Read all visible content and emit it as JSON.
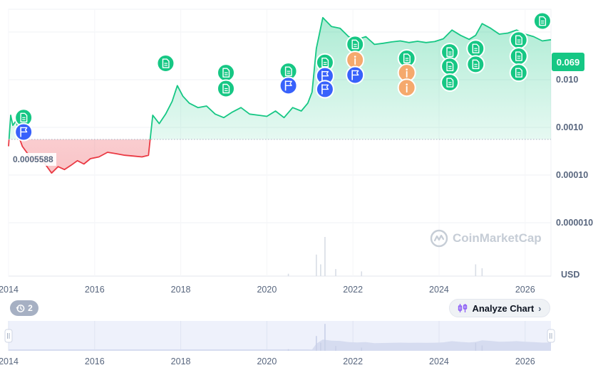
{
  "chart_data": {
    "type": "line",
    "currency": "USD",
    "current_price": "0.069",
    "baseline_label": "0.0005588",
    "baseline_value": 0.0005588,
    "y_scale": "log",
    "y_ticks": [
      "0.010",
      "0.0010",
      "0.00010",
      "0.000010"
    ],
    "y_tick_values": [
      0.01,
      0.001,
      0.0001,
      1e-05
    ],
    "x_ticks": [
      "2014",
      "2016",
      "2018",
      "2020",
      "2022",
      "2024",
      "2026"
    ],
    "x_tick_values": [
      2014,
      2016,
      2018,
      2020,
      2022,
      2024,
      2026
    ],
    "xlim": [
      2014,
      2026.6
    ],
    "ylim": [
      3e-06,
      0.3
    ],
    "series": [
      {
        "x": [
          2014.0,
          2014.05,
          2014.1,
          2014.18,
          2014.25,
          2014.32,
          2014.42,
          2014.55,
          2014.7,
          2014.85,
          2015.0,
          2015.15,
          2015.3,
          2015.45,
          2015.6,
          2015.75,
          2015.9,
          2016.1,
          2016.3,
          2016.5,
          2016.7,
          2016.9,
          2017.1,
          2017.25,
          2017.35,
          2017.5,
          2017.65,
          2017.8,
          2017.92,
          2018.05,
          2018.2,
          2018.4,
          2018.6,
          2018.8,
          2019.0,
          2019.2,
          2019.4,
          2019.6,
          2019.8,
          2020.0,
          2020.2,
          2020.4,
          2020.6,
          2020.8,
          2020.95,
          2021.05,
          2021.15,
          2021.3,
          2021.5,
          2021.7,
          2021.9,
          2022.1,
          2022.3,
          2022.5,
          2022.7,
          2022.9,
          2023.1,
          2023.3,
          2023.5,
          2023.7,
          2023.9,
          2024.1,
          2024.3,
          2024.5,
          2024.7,
          2024.85,
          2025.0,
          2025.2,
          2025.4,
          2025.6,
          2025.8,
          2026.0,
          2026.2,
          2026.4,
          2026.6
        ],
        "y": [
          0.0004,
          0.0018,
          0.0011,
          0.0014,
          0.0006,
          0.0004,
          0.0003,
          0.0002,
          0.00023,
          0.00017,
          0.00011,
          0.00015,
          0.00013,
          0.00016,
          0.0002,
          0.00017,
          0.00022,
          0.00024,
          0.0003,
          0.00028,
          0.00026,
          0.00025,
          0.00024,
          0.00026,
          0.0018,
          0.0012,
          0.0019,
          0.0035,
          0.0075,
          0.0045,
          0.0032,
          0.0026,
          0.0028,
          0.0019,
          0.0016,
          0.0021,
          0.0026,
          0.0019,
          0.0018,
          0.0017,
          0.0022,
          0.0016,
          0.0026,
          0.0022,
          0.0032,
          0.0055,
          0.045,
          0.2,
          0.13,
          0.12,
          0.08,
          0.07,
          0.08,
          0.055,
          0.058,
          0.062,
          0.065,
          0.06,
          0.064,
          0.06,
          0.063,
          0.072,
          0.11,
          0.085,
          0.07,
          0.085,
          0.15,
          0.12,
          0.09,
          0.095,
          0.11,
          0.09,
          0.08,
          0.065,
          0.069
        ]
      }
    ],
    "events": [
      {
        "x": 2014.35,
        "y": 0.0016,
        "kind": "news"
      },
      {
        "x": 2014.35,
        "y": 0.0008,
        "kind": "flag"
      },
      {
        "x": 2017.65,
        "y": 0.022,
        "kind": "news"
      },
      {
        "x": 2019.05,
        "y": 0.014,
        "kind": "news"
      },
      {
        "x": 2019.05,
        "y": 0.0065,
        "kind": "news"
      },
      {
        "x": 2020.5,
        "y": 0.015,
        "kind": "news"
      },
      {
        "x": 2020.5,
        "y": 0.0075,
        "kind": "flag"
      },
      {
        "x": 2021.35,
        "y": 0.023,
        "kind": "news"
      },
      {
        "x": 2021.35,
        "y": 0.012,
        "kind": "flag"
      },
      {
        "x": 2021.35,
        "y": 0.0063,
        "kind": "flag"
      },
      {
        "x": 2022.05,
        "y": 0.055,
        "kind": "news"
      },
      {
        "x": 2022.05,
        "y": 0.026,
        "kind": "info"
      },
      {
        "x": 2022.05,
        "y": 0.0125,
        "kind": "flag"
      },
      {
        "x": 2023.25,
        "y": 0.028,
        "kind": "news"
      },
      {
        "x": 2023.25,
        "y": 0.014,
        "kind": "info"
      },
      {
        "x": 2023.25,
        "y": 0.0068,
        "kind": "info"
      },
      {
        "x": 2024.25,
        "y": 0.038,
        "kind": "news"
      },
      {
        "x": 2024.25,
        "y": 0.019,
        "kind": "news"
      },
      {
        "x": 2024.25,
        "y": 0.0087,
        "kind": "news"
      },
      {
        "x": 2024.85,
        "y": 0.045,
        "kind": "news"
      },
      {
        "x": 2024.85,
        "y": 0.021,
        "kind": "news"
      },
      {
        "x": 2025.85,
        "y": 0.068,
        "kind": "news"
      },
      {
        "x": 2025.85,
        "y": 0.031,
        "kind": "news"
      },
      {
        "x": 2025.85,
        "y": 0.014,
        "kind": "news"
      },
      {
        "x": 2026.4,
        "y": 0.17,
        "kind": "news"
      }
    ],
    "volume_spikes": [
      {
        "x": 2021.35,
        "v": 1.0
      },
      {
        "x": 2021.15,
        "v": 0.55
      },
      {
        "x": 2021.25,
        "v": 0.3
      },
      {
        "x": 2021.6,
        "v": 0.18
      },
      {
        "x": 2022.2,
        "v": 0.12
      },
      {
        "x": 2024.85,
        "v": 0.3
      },
      {
        "x": 2025.0,
        "v": 0.2
      },
      {
        "x": 2020.5,
        "v": 0.06
      }
    ],
    "colors": {
      "up": "#16c784",
      "down": "#ea3943",
      "news": "#16c784",
      "flag": "#3861fb",
      "info": "#f5a96d",
      "grid": "#eff2f5"
    }
  },
  "ui": {
    "history_count": "2",
    "analyze_label": "Analyze Chart",
    "watermark_text": "CoinMarketCap",
    "icons": {
      "history": "history-icon",
      "analyze": "candlestick-icon",
      "chevron": "chevron-right-icon",
      "logo": "coinmarketcap-logo-icon"
    }
  }
}
